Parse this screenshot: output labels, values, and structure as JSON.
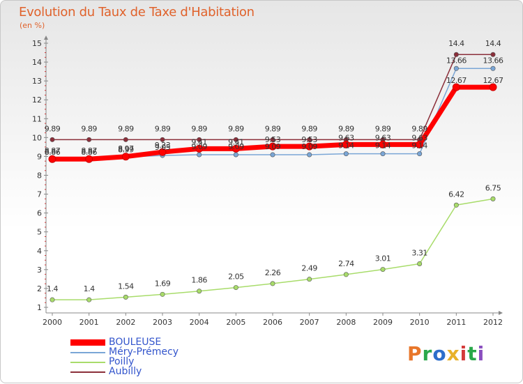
{
  "header": {
    "title": "Evolution du Taux de Taxe d'Habitation",
    "subtitle": "(en %)"
  },
  "logo": {
    "text": "Proxiti"
  },
  "colors": {
    "title": "#e0622b",
    "axis": "#888888",
    "tick_marks": "#cc3333",
    "logo": [
      "#e8762a",
      "#2aa84a",
      "#2c6ecb",
      "#e8b22a",
      "#d43a3a",
      "#2aa84a",
      "#8a4fbf"
    ]
  },
  "chart_data": {
    "type": "line",
    "title": "Evolution du Taux de Taxe d'Habitation",
    "ylabel": "(en %)",
    "xlabel": "",
    "ylim": [
      1,
      15
    ],
    "y_ticks": [
      "1",
      "2",
      "3",
      "4",
      "5",
      "6",
      "7",
      "8",
      "9",
      "10",
      "11",
      "12",
      "13",
      "14",
      "15"
    ],
    "categories": [
      "2000",
      "2001",
      "2002",
      "2003",
      "2004",
      "2005",
      "2006",
      "2007",
      "2008",
      "2009",
      "2010",
      "2011",
      "2012"
    ],
    "series": [
      {
        "name": "BOULEUSE",
        "color": "#ff0000",
        "values": [
          8.86,
          8.86,
          8.99,
          9.23,
          9.41,
          9.41,
          9.53,
          9.53,
          9.63,
          9.63,
          9.63,
          12.67,
          12.67
        ],
        "labels": [
          "8.86",
          "8.86",
          "8.99",
          "9.23",
          "9.41",
          "9.41",
          "9.53",
          "9.53",
          "9.63",
          "9.63",
          "9.63",
          "12.67",
          "12.67"
        ]
      },
      {
        "name": "Méry-Prémecy",
        "color": "#7aa6d6",
        "values": [
          8.87,
          8.87,
          8.97,
          9.05,
          9.09,
          9.09,
          9.09,
          9.09,
          9.14,
          9.14,
          9.14,
          13.66,
          13.66
        ],
        "labels": [
          "8.87",
          "8.87",
          "8.97",
          "9.05",
          "9.09",
          "9.09",
          "9.09",
          "9.09",
          "9.14",
          "9.14",
          "9.14",
          "13.66",
          "13.66"
        ]
      },
      {
        "name": "Poilly",
        "color": "#a8dc6a",
        "values": [
          1.4,
          1.4,
          1.54,
          1.69,
          1.86,
          2.05,
          2.26,
          2.49,
          2.74,
          3.01,
          3.31,
          6.42,
          6.75
        ],
        "labels": [
          "1.4",
          "1.4",
          "1.54",
          "1.69",
          "1.86",
          "2.05",
          "2.26",
          "2.49",
          "2.74",
          "3.01",
          "3.31",
          "6.42",
          "6.75"
        ]
      },
      {
        "name": "Aubilly",
        "color": "#8b2f3a",
        "values": [
          9.89,
          9.89,
          9.89,
          9.89,
          9.89,
          9.89,
          9.89,
          9.89,
          9.89,
          9.89,
          9.89,
          14.4,
          14.4
        ],
        "labels": [
          "9.89",
          "9.89",
          "9.89",
          "9.89",
          "9.89",
          "9.89",
          "9.89",
          "9.89",
          "9.89",
          "9.89",
          "9.89",
          "14.4",
          "14.4"
        ]
      }
    ],
    "legend": [
      "BOULEUSE",
      "Méry-Prémecy",
      "Poilly",
      "Aubilly"
    ],
    "legend_position": "bottom-left",
    "grid": false
  }
}
